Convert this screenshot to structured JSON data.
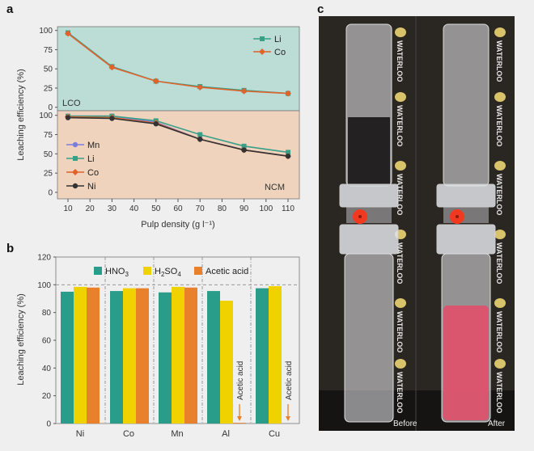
{
  "panel_labels": {
    "a": "a",
    "b": "b",
    "c": "c"
  },
  "colors": {
    "lco_bg": "#bcdcd6",
    "ncm_bg": "#efd3bd",
    "page_bg": "#efefef",
    "Li": "#3a9f88",
    "Co": "#e2622a",
    "Mn": "#7c7ce0",
    "Ni": "#333333",
    "HNO3": "#2a9d8a",
    "H2SO4": "#f0d200",
    "Acetic acid": "#e8802c"
  },
  "chart_data": [
    {
      "type": "line",
      "panel": "a",
      "xlabel": "Pulp density (g l⁻¹)",
      "ylabel": "Leaching efficiency (%)",
      "xlim": [
        5,
        115
      ],
      "xticks": [
        10,
        20,
        30,
        40,
        50,
        60,
        70,
        80,
        90,
        100,
        110
      ],
      "x": [
        10,
        30,
        50,
        70,
        90,
        110
      ],
      "subplots": [
        {
          "label": "LCO",
          "ylim": [
            0,
            100
          ],
          "yticks": [
            0,
            25,
            50,
            75,
            100
          ],
          "legend": "top-right",
          "series": [
            {
              "name": "Li",
              "marker": "square",
              "values": [
                97,
                53,
                34,
                27,
                22,
                18
              ]
            },
            {
              "name": "Co",
              "marker": "diamond",
              "values": [
                96,
                52,
                34,
                26,
                21,
                18
              ]
            }
          ]
        },
        {
          "label": "NCM",
          "ylim": [
            0,
            100
          ],
          "yticks": [
            0,
            25,
            50,
            75,
            100
          ],
          "legend": "left",
          "series": [
            {
              "name": "Mn",
              "marker": "circle",
              "values": [
                99,
                99,
                91,
                69,
                55,
                47
              ]
            },
            {
              "name": "Li",
              "marker": "square",
              "values": [
                99,
                99,
                93,
                75,
                60,
                52
              ]
            },
            {
              "name": "Co",
              "marker": "diamond",
              "values": [
                98,
                97,
                90,
                69,
                55,
                47
              ]
            },
            {
              "name": "Ni",
              "marker": "circle",
              "values": [
                97,
                96,
                89,
                69,
                55,
                47
              ]
            }
          ]
        }
      ]
    },
    {
      "type": "bar",
      "panel": "b",
      "ylabel": "Leaching efficiency (%)",
      "ylim": [
        0,
        120
      ],
      "yticks": [
        0,
        20,
        40,
        60,
        80,
        100,
        120
      ],
      "reference_line": 100,
      "legend": "top",
      "categories": [
        "Ni",
        "Co",
        "Mn",
        "Al",
        "Cu"
      ],
      "series": [
        {
          "name": "HNO3",
          "label_main": "HNO",
          "label_sub": "3",
          "values": [
            95,
            95.5,
            94.5,
            95.5,
            97.5
          ]
        },
        {
          "name": "H2SO4",
          "label_main": "H",
          "label_sub": "2",
          "label_mid": "SO",
          "label_sub2": "4",
          "values": [
            98.5,
            97.5,
            98.5,
            88.5,
            99
          ]
        },
        {
          "name": "Acetic acid",
          "label_main": "Acetic acid",
          "values": [
            98,
            97.5,
            98,
            0.5,
            0
          ]
        }
      ],
      "annotations": [
        {
          "category": "Al",
          "text": "Acetic acid"
        },
        {
          "category": "Cu",
          "text": "Acetic acid"
        }
      ]
    }
  ],
  "photo": {
    "watermark": "UNIVERSITY OF WATERLOO",
    "watermark_short": "WATERLOO",
    "left_caption": "Before",
    "right_caption": "After"
  }
}
